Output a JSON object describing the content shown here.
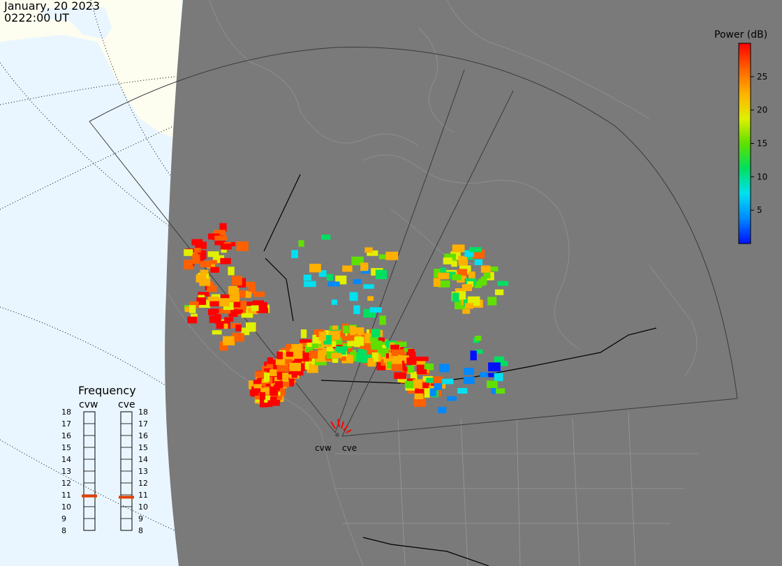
{
  "header": {
    "date": "January, 20 2023",
    "time": "0222:00 UT"
  },
  "colorbar": {
    "label": "Power (dB)",
    "range": [
      0,
      30
    ],
    "ticks": [
      5,
      10,
      15,
      20,
      25
    ],
    "tick_labels": [
      "5",
      "10",
      "15",
      "20",
      "25"
    ],
    "colors": [
      "#0010ff",
      "#0088ff",
      "#00e0f0",
      "#00e060",
      "#60e000",
      "#e0f000",
      "#ffb000",
      "#ff6000",
      "#ff0000"
    ]
  },
  "frequency": {
    "title": "Frequency",
    "radars": [
      {
        "name": "cvw",
        "value": 10.9
      },
      {
        "name": "cve",
        "value": 10.8
      }
    ],
    "range": [
      8,
      18
    ],
    "scale_labels": [
      "8",
      "9",
      "10",
      "11",
      "12",
      "13",
      "14",
      "15",
      "16",
      "17",
      "18"
    ],
    "marker_color": "#e04000"
  },
  "radar_sites": [
    {
      "name": "cvw",
      "label": "cvw"
    },
    {
      "name": "cve",
      "label": "cve"
    }
  ],
  "map_colors": {
    "ocean": "#eaf6ff",
    "land": "#fdfdf0",
    "night": "#7a7a7a"
  }
}
